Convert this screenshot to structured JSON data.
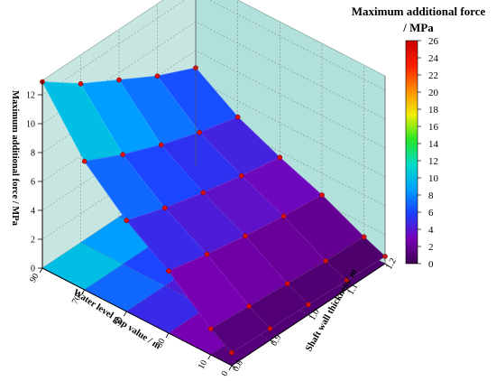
{
  "chart_data": {
    "type": "surface3d",
    "z_axis_label": "Maximum additional force / MPa",
    "x_axis_label": "Water level gap value / m",
    "y_axis_label": "Shaft wall thickness/ m",
    "colorbar_title_line1": "Maximum additional force",
    "colorbar_title_line2": "/ MPa",
    "z_ticks": [
      "0",
      "2",
      "4",
      "6",
      "8",
      "10",
      "12"
    ],
    "x_ticks": [
      "0",
      "10",
      "30",
      "50",
      "70",
      "90"
    ],
    "y_ticks": [
      "0.8",
      "0.9",
      "1.0",
      "1.1",
      "1.2"
    ],
    "colorbar_ticks": [
      "0",
      "2",
      "4",
      "6",
      "8",
      "10",
      "12",
      "14",
      "16",
      "18",
      "20",
      "22",
      "24",
      "26"
    ],
    "colorbar_range": [
      0,
      26
    ],
    "zlim": [
      0,
      13
    ],
    "grid": true,
    "colormap": [
      "#3c0050",
      "#7800b4",
      "#1e3cff",
      "#00a0ff",
      "#00dcc8",
      "#28e628",
      "#f0f000",
      "#ff8c00",
      "#ff1e00",
      "#c80000"
    ],
    "water_level_gap_m": [
      90,
      70,
      50,
      30,
      10,
      0
    ],
    "shaft_wall_thickness_m": [
      0.8,
      0.9,
      1.0,
      1.1,
      1.2
    ],
    "max_additional_force_MPa": [
      [
        12.9,
        11.0,
        9.5,
        8.0,
        6.8
      ],
      [
        8.9,
        7.6,
        6.5,
        5.6,
        4.9
      ],
      [
        6.3,
        5.4,
        4.7,
        4.1,
        3.6
      ],
      [
        4.3,
        3.7,
        3.2,
        2.8,
        2.5
      ],
      [
        1.8,
        1.6,
        1.4,
        1.2,
        1.1
      ],
      [
        0.9,
        0.8,
        0.7,
        0.6,
        0.5
      ]
    ]
  }
}
